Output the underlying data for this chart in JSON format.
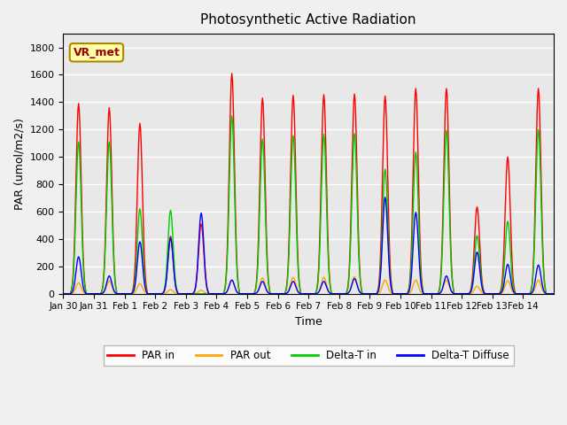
{
  "title": "Photosynthetic Active Radiation",
  "ylabel": "PAR (umol/m2/s)",
  "xlabel": "Time",
  "label_text": "VR_met",
  "ylim": [
    0,
    1900
  ],
  "yticks": [
    0,
    200,
    400,
    600,
    800,
    1000,
    1200,
    1400,
    1600,
    1800
  ],
  "xtick_labels": [
    "Jan 30",
    "Jan 31",
    "Feb 1",
    "Feb 2",
    "Feb 3",
    "Feb 4",
    "Feb 5",
    "Feb 6",
    "Feb 7",
    "Feb 8",
    "Feb 9",
    "Feb 10",
    "Feb 11",
    "Feb 12",
    "Feb 13",
    "Feb 14"
  ],
  "colors": {
    "PAR_in": "#ff0000",
    "PAR_out": "#ffa500",
    "Delta_T_in": "#00cc00",
    "Delta_T_diffuse": "#0000ff"
  },
  "legend_labels": [
    "PAR in",
    "PAR out",
    "Delta-T in",
    "Delta-T Diffuse"
  ],
  "background_color": "#e8e8e8",
  "grid_color": "#ffffff",
  "daily_peaks": {
    "Jan30": {
      "par_in": 1390,
      "par_out": 80,
      "dt_in": 1110,
      "dt_diff": 270
    },
    "Jan31": {
      "par_in": 1360,
      "par_out": 95,
      "dt_in": 1110,
      "dt_diff": 130
    },
    "Feb1": {
      "par_in": 1245,
      "par_out": 75,
      "dt_in": 620,
      "dt_diff": 380
    },
    "Feb2": {
      "par_in": 420,
      "par_out": 30,
      "dt_in": 610,
      "dt_diff": 405
    },
    "Feb3": {
      "par_in": 510,
      "par_out": 25,
      "dt_in": 0,
      "dt_diff": 590
    },
    "Feb4": {
      "par_in": 1610,
      "par_out": 100,
      "dt_in": 1300,
      "dt_diff": 100
    },
    "Feb5": {
      "par_in": 1430,
      "par_out": 115,
      "dt_in": 1130,
      "dt_diff": 90
    },
    "Feb6": {
      "par_in": 1450,
      "par_out": 120,
      "dt_in": 1155,
      "dt_diff": 90
    },
    "Feb7": {
      "par_in": 1455,
      "par_out": 120,
      "dt_in": 1165,
      "dt_diff": 90
    },
    "Feb8": {
      "par_in": 1460,
      "par_out": 125,
      "dt_in": 1170,
      "dt_diff": 110
    },
    "Feb9": {
      "par_in": 1445,
      "par_out": 100,
      "dt_in": 910,
      "dt_diff": 705
    },
    "Feb10": {
      "par_in": 1500,
      "par_out": 100,
      "dt_in": 1035,
      "dt_diff": 595
    },
    "Feb11": {
      "par_in": 1500,
      "par_out": 100,
      "dt_in": 1195,
      "dt_diff": 130
    },
    "Feb12": {
      "par_in": 635,
      "par_out": 55,
      "dt_in": 425,
      "dt_diff": 305
    },
    "Feb13": {
      "par_in": 1000,
      "par_out": 95,
      "dt_in": 530,
      "dt_diff": 215
    },
    "Feb14": {
      "par_in": 1500,
      "par_out": 100,
      "dt_in": 1200,
      "dt_diff": 210
    }
  }
}
